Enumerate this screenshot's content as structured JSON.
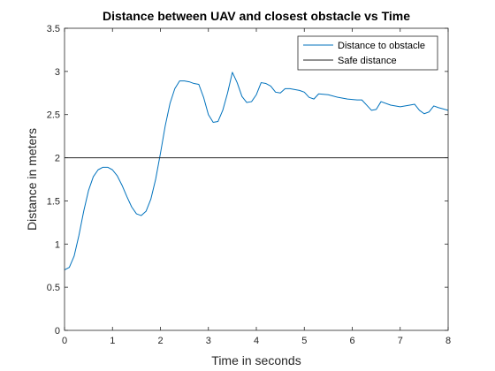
{
  "chart_data": {
    "type": "line",
    "title": "Distance between UAV and closest obstacle vs Time",
    "xlabel": "Time in seconds",
    "ylabel": "Distance in meters",
    "xlim": [
      0,
      8
    ],
    "ylim": [
      0,
      3.5
    ],
    "x_ticks": [
      0,
      1,
      2,
      3,
      4,
      5,
      6,
      7,
      8
    ],
    "x_tick_labels": [
      "0",
      "1",
      "2",
      "3",
      "4",
      "5",
      "6",
      "7",
      "8"
    ],
    "y_ticks": [
      0,
      0.5,
      1,
      1.5,
      2,
      2.5,
      3,
      3.5
    ],
    "y_tick_labels": [
      "0",
      "0.5",
      "1",
      "1.5",
      "2",
      "2.5",
      "3",
      "3.5"
    ],
    "grid": false,
    "legend_position": "top-right",
    "series": [
      {
        "name": "Distance to obstacle",
        "color": "#0072BD",
        "x": [
          0,
          0.1,
          0.2,
          0.3,
          0.4,
          0.5,
          0.6,
          0.7,
          0.8,
          0.9,
          1.0,
          1.1,
          1.2,
          1.3,
          1.4,
          1.5,
          1.6,
          1.7,
          1.8,
          1.9,
          2.0,
          2.1,
          2.2,
          2.3,
          2.4,
          2.5,
          2.6,
          2.7,
          2.8,
          2.9,
          3.0,
          3.1,
          3.2,
          3.3,
          3.4,
          3.5,
          3.6,
          3.7,
          3.8,
          3.9,
          4.0,
          4.1,
          4.2,
          4.3,
          4.4,
          4.5,
          4.6,
          4.7,
          4.8,
          4.9,
          5.0,
          5.1,
          5.2,
          5.3,
          5.5,
          5.7,
          5.9,
          6.1,
          6.2,
          6.3,
          6.4,
          6.5,
          6.6,
          6.8,
          7.0,
          7.2,
          7.3,
          7.4,
          7.5,
          7.6,
          7.7,
          7.8,
          8.0
        ],
        "values": [
          0.7,
          0.73,
          0.86,
          1.1,
          1.38,
          1.62,
          1.78,
          1.86,
          1.89,
          1.89,
          1.86,
          1.79,
          1.68,
          1.55,
          1.43,
          1.35,
          1.33,
          1.38,
          1.52,
          1.75,
          2.05,
          2.37,
          2.63,
          2.8,
          2.89,
          2.89,
          2.88,
          2.86,
          2.85,
          2.7,
          2.5,
          2.41,
          2.42,
          2.55,
          2.75,
          2.99,
          2.87,
          2.71,
          2.64,
          2.65,
          2.73,
          2.87,
          2.86,
          2.83,
          2.76,
          2.75,
          2.8,
          2.8,
          2.79,
          2.78,
          2.76,
          2.7,
          2.68,
          2.74,
          2.73,
          2.7,
          2.68,
          2.67,
          2.67,
          2.61,
          2.55,
          2.56,
          2.65,
          2.61,
          2.59,
          2.61,
          2.62,
          2.55,
          2.51,
          2.53,
          2.6,
          2.58,
          2.55
        ]
      },
      {
        "name": "Safe distance",
        "color": "#262626",
        "x": [
          0,
          8
        ],
        "values": [
          2,
          2
        ]
      }
    ]
  }
}
